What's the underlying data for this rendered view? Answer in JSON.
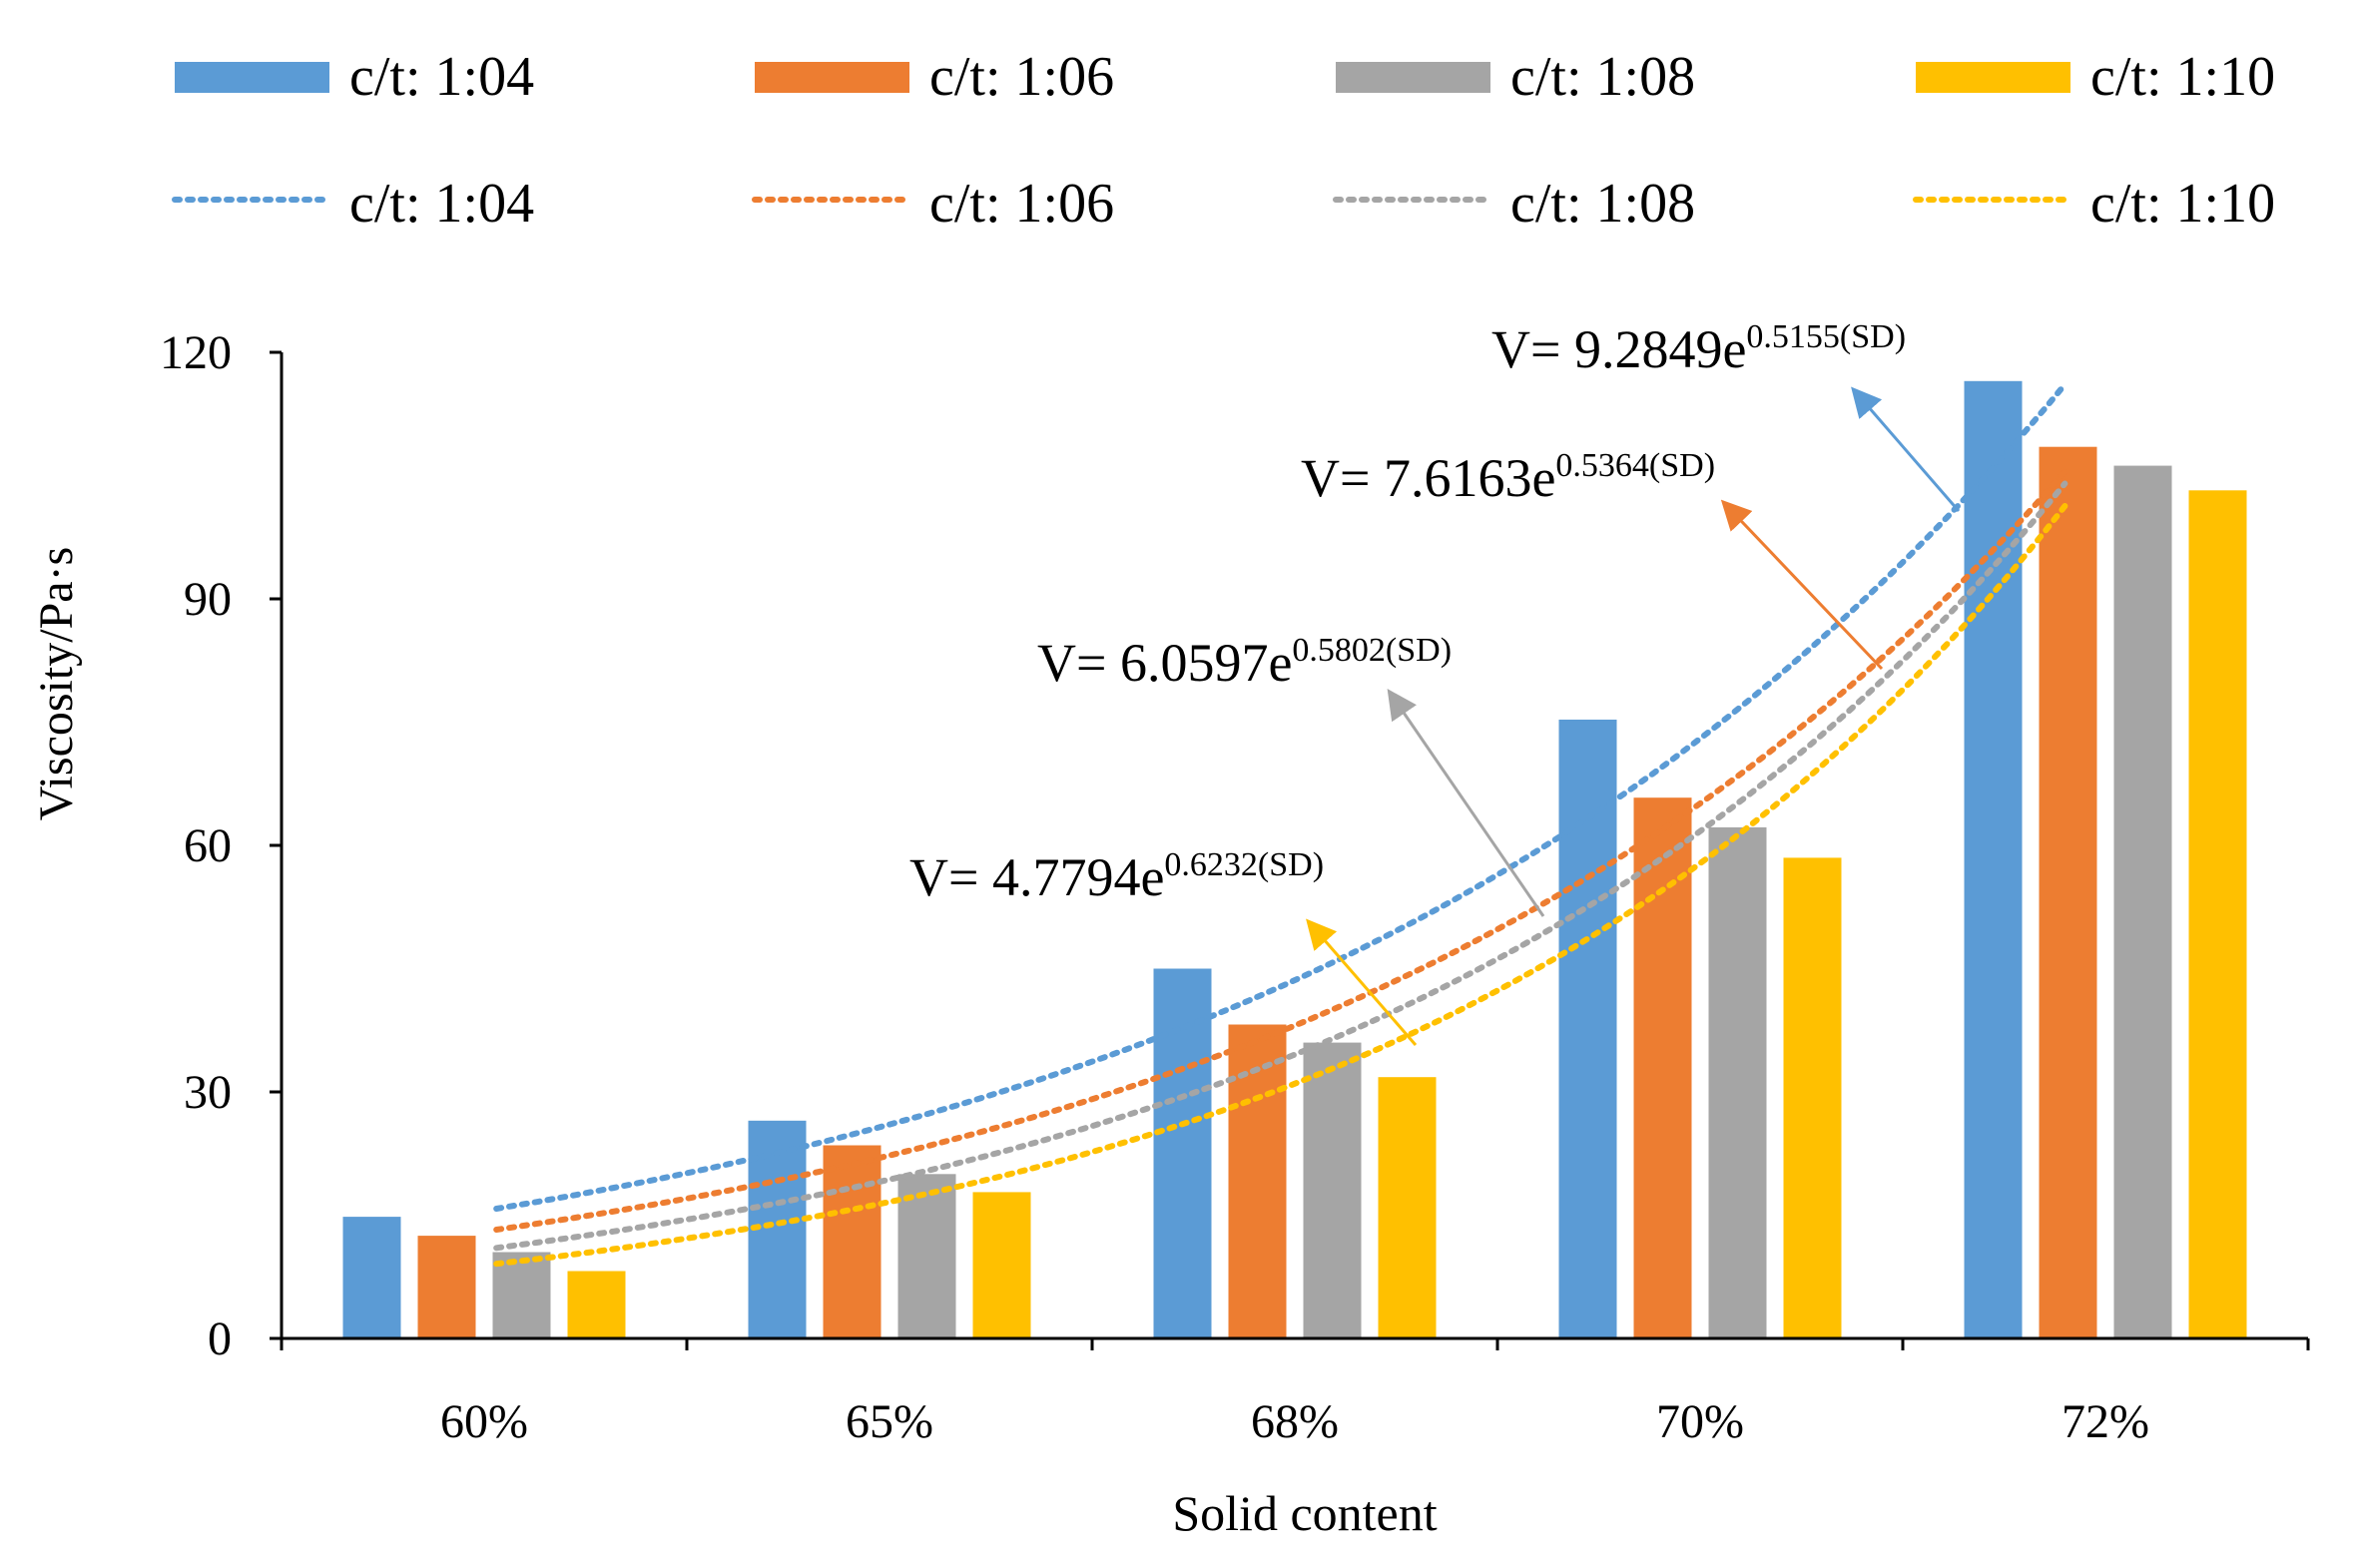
{
  "chart_data": {
    "type": "bar",
    "title": "",
    "xlabel": "Solid content",
    "ylabel": "Viscosity/Pa·s",
    "categories": [
      "60%",
      "65%",
      "68%",
      "70%",
      "72%"
    ],
    "ylim": [
      0,
      120
    ],
    "yticks": [
      0,
      30,
      60,
      90,
      120
    ],
    "grid": false,
    "legend_position": "top",
    "series": [
      {
        "name": "c/t: 1:04",
        "color": "#5b9bd5",
        "values": [
          14.8,
          26.5,
          45,
          75.3,
          116.5
        ]
      },
      {
        "name": "c/t: 1:06",
        "color": "#ed7d31",
        "values": [
          12.5,
          23.5,
          38.2,
          65.8,
          108.5
        ]
      },
      {
        "name": "c/t: 1:08",
        "color": "#a5a5a5",
        "values": [
          10.5,
          20,
          36,
          62.2,
          106.2
        ]
      },
      {
        "name": "c/t: 1:10",
        "color": "#ffc000",
        "values": [
          8.2,
          17.8,
          31.8,
          58.5,
          103.2
        ]
      }
    ],
    "trendlines": [
      {
        "name": "c/t: 1:04",
        "color": "#5b9bd5",
        "a": 9.2849,
        "b": 0.5155,
        "eq_prefix": "V= 9.2849e",
        "eq_exponent": "0.5155(SD)"
      },
      {
        "name": "c/t: 1:06",
        "color": "#ed7d31",
        "a": 7.6163,
        "b": 0.5364,
        "eq_prefix": "V= 7.6163e",
        "eq_exponent": "0.5364(SD)"
      },
      {
        "name": "c/t: 1:08",
        "color": "#a5a5a5",
        "a": 6.0597,
        "b": 0.5802,
        "eq_prefix": "V= 6.0597e",
        "eq_exponent": "0.5802(SD)"
      },
      {
        "name": "c/t: 1:10",
        "color": "#ffc000",
        "a": 4.7794,
        "b": 0.6232,
        "eq_prefix": "V= 4.7794e",
        "eq_exponent": "0.6232(SD)"
      }
    ]
  }
}
